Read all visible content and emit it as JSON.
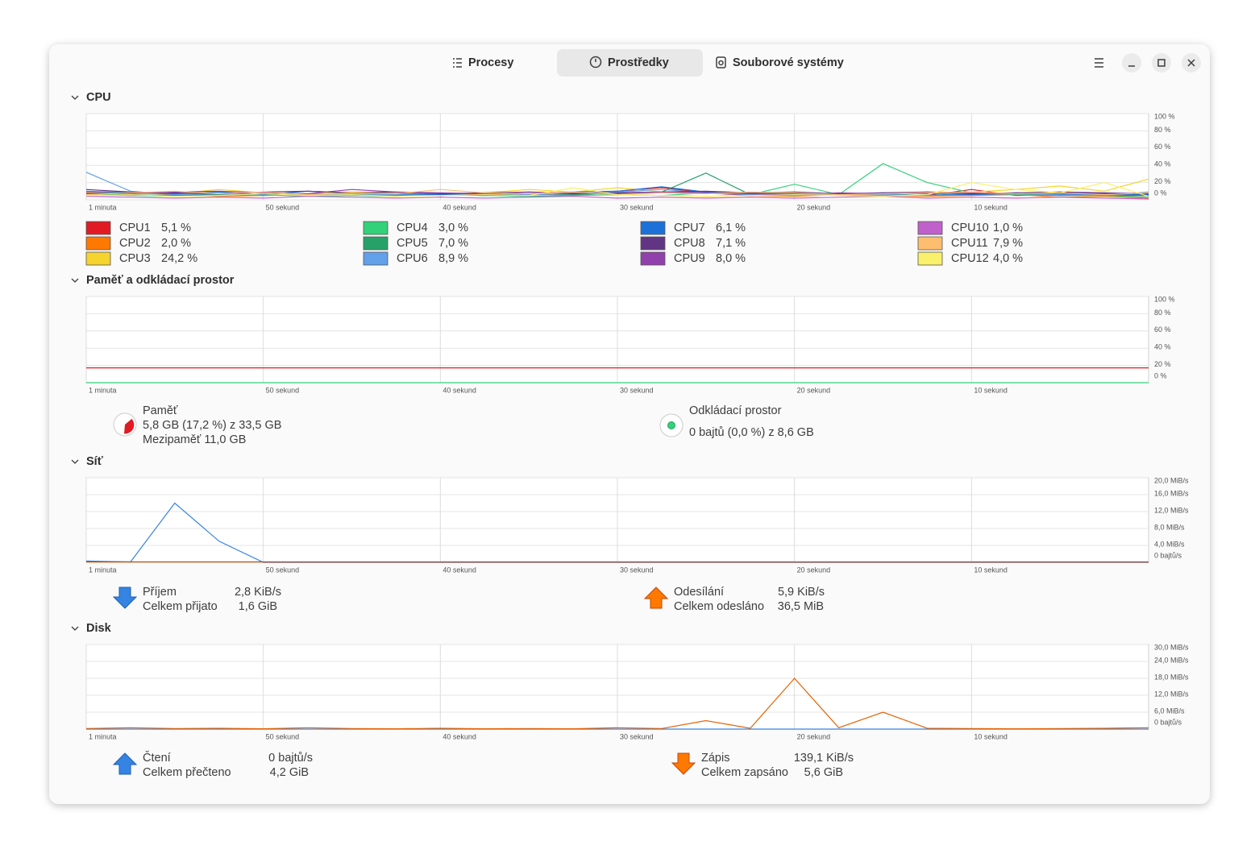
{
  "tabs": [
    {
      "label": "Procesy"
    },
    {
      "label": "Prostředky",
      "selected": true
    },
    {
      "label": "Souborové systémy"
    }
  ],
  "sections": [
    {
      "title": "CPU",
      "chart": {
        "type": "line",
        "x": [
          60,
          57.5,
          55,
          52.5,
          50,
          47.5,
          45,
          42.5,
          40,
          37.5,
          35,
          32.5,
          30,
          27.5,
          25,
          22.5,
          20,
          17.5,
          15,
          12.5,
          10,
          7.5,
          5,
          2.5,
          0
        ],
        "xlim": [
          60,
          0
        ],
        "xticks": [
          {
            "value": 60,
            "label": "1 minuta"
          },
          {
            "value": 50,
            "label": "50 sekund"
          },
          {
            "value": 40,
            "label": "40 sekund"
          },
          {
            "value": 30,
            "label": "30 sekund"
          },
          {
            "value": 20,
            "label": "20 sekund"
          },
          {
            "value": 10,
            "label": "10 sekund"
          }
        ],
        "ylim": [
          0,
          100
        ],
        "yticks": [
          {
            "value": 0,
            "label": "0 %"
          },
          {
            "value": 20,
            "label": "20 %"
          },
          {
            "value": 40,
            "label": "40 %"
          },
          {
            "value": 60,
            "label": "60 %"
          },
          {
            "value": 80,
            "label": "80 %"
          },
          {
            "value": 100,
            "label": "100 %"
          }
        ],
        "series": [
          {
            "name": "CPU1",
            "current": "5,1 %",
            "color": "#e01b24",
            "values": [
              8,
              6,
              5,
              7,
              6,
              5,
              6,
              8,
              5,
              7,
              6,
              6,
              10,
              14,
              8,
              5,
              6,
              7,
              6,
              5,
              12,
              5,
              6,
              5,
              5
            ]
          },
          {
            "name": "CPU2",
            "current": "2,0 %",
            "color": "#ff7800",
            "values": [
              7,
              5,
              6,
              4,
              5,
              6,
              5,
              4,
              6,
              5,
              7,
              5,
              6,
              5,
              4,
              5,
              4,
              6,
              5,
              4,
              5,
              6,
              3,
              4,
              2
            ]
          },
          {
            "name": "CPU3",
            "current": "24,2 %",
            "color": "#f6d32d",
            "values": [
              9,
              8,
              7,
              12,
              8,
              7,
              9,
              8,
              6,
              8,
              12,
              9,
              14,
              9,
              8,
              7,
              8,
              6,
              8,
              7,
              9,
              12,
              16,
              10,
              24
            ]
          },
          {
            "name": "CPU4",
            "current": "3,0 %",
            "color": "#33d17a",
            "values": [
              6,
              5,
              4,
              5,
              6,
              4,
              5,
              4,
              6,
              5,
              4,
              5,
              6,
              5,
              8,
              6,
              18,
              6,
              42,
              20,
              8,
              6,
              5,
              5,
              3
            ]
          },
          {
            "name": "CPU5",
            "current": "7,0 %",
            "color": "#26a269",
            "values": [
              7,
              6,
              5,
              6,
              5,
              7,
              6,
              5,
              6,
              5,
              7,
              6,
              8,
              9,
              31,
              6,
              5,
              6,
              7,
              5,
              6,
              7,
              5,
              6,
              7
            ]
          },
          {
            "name": "CPU6",
            "current": "8,9 %",
            "color": "#62a0ea",
            "values": [
              32,
              10,
              6,
              7,
              5,
              6,
              7,
              6,
              5,
              8,
              6,
              7,
              9,
              12,
              8,
              6,
              5,
              7,
              6,
              5,
              6,
              7,
              6,
              5,
              9
            ]
          },
          {
            "name": "CPU7",
            "current": "6,1 %",
            "color": "#1c71d8",
            "values": [
              10,
              8,
              7,
              9,
              6,
              10,
              8,
              7,
              6,
              8,
              7,
              9,
              10,
              15,
              9,
              8,
              7,
              6,
              8,
              7,
              6,
              8,
              7,
              6,
              6
            ]
          },
          {
            "name": "CPU8",
            "current": "7,1 %",
            "color": "#613583",
            "values": [
              12,
              9,
              8,
              7,
              9,
              10,
              8,
              9,
              7,
              8,
              9,
              7,
              8,
              9,
              10,
              8,
              9,
              7,
              8,
              9,
              7,
              8,
              9,
              8,
              7
            ]
          },
          {
            "name": "CPU9",
            "current": "8,0 %",
            "color": "#9141ac",
            "values": [
              8,
              7,
              9,
              10,
              8,
              7,
              12,
              9,
              8,
              7,
              9,
              8,
              7,
              9,
              8,
              7,
              6,
              8,
              7,
              9,
              8,
              7,
              8,
              7,
              8
            ]
          },
          {
            "name": "CPU10",
            "current": "1,0 %",
            "color": "#c061cb",
            "values": [
              4,
              3,
              2,
              3,
              2,
              4,
              3,
              2,
              3,
              2,
              3,
              4,
              2,
              3,
              2,
              3,
              2,
              3,
              4,
              2,
              3,
              2,
              3,
              2,
              1
            ]
          },
          {
            "name": "CPU11",
            "current": "7,9 %",
            "color": "#ffbe6f",
            "values": [
              6,
              8,
              10,
              7,
              9,
              6,
              8,
              7,
              12,
              8,
              7,
              9,
              6,
              8,
              7,
              9,
              8,
              6,
              7,
              8,
              9,
              7,
              8,
              6,
              8
            ]
          },
          {
            "name": "CPU12",
            "current": "4,0 %",
            "color": "#f9f06b",
            "values": [
              5,
              6,
              4,
              5,
              7,
              5,
              6,
              4,
              5,
              6,
              5,
              14,
              6,
              5,
              4,
              5,
              6,
              5,
              4,
              6,
              20,
              12,
              8,
              20,
              4
            ]
          }
        ]
      }
    },
    {
      "title": "Paměť a odkládací prostor",
      "chart": {
        "type": "line",
        "x": [
          60,
          0
        ],
        "xlim": [
          60,
          0
        ],
        "xticks": [
          {
            "value": 60,
            "label": "1 minuta"
          },
          {
            "value": 50,
            "label": "50 sekund"
          },
          {
            "value": 40,
            "label": "40 sekund"
          },
          {
            "value": 30,
            "label": "30 sekund"
          },
          {
            "value": 20,
            "label": "20 sekund"
          },
          {
            "value": 10,
            "label": "10 sekund"
          }
        ],
        "ylim": [
          0,
          100
        ],
        "yticks": [
          {
            "value": 0,
            "label": "0 %"
          },
          {
            "value": 20,
            "label": "20 %"
          },
          {
            "value": 40,
            "label": "40 %"
          },
          {
            "value": 60,
            "label": "60 %"
          },
          {
            "value": 80,
            "label": "80 %"
          },
          {
            "value": 100,
            "label": "100 %"
          }
        ],
        "series": [
          {
            "name": "Paměť",
            "color": "#e01b24",
            "values": [
              17.2,
              17.2
            ]
          },
          {
            "name": "Odkládací prostor",
            "color": "#33d17a",
            "values": [
              0,
              0
            ]
          }
        ]
      },
      "legend": [
        {
          "name": "Paměť",
          "lines": [
            "5,8 GB (17,2 %) z 33,5 GB",
            "Mezipaměť 11,0 GB"
          ]
        },
        {
          "name": "Odkládací prostor",
          "lines": [
            "0 bajtů (0,0 %) z 8,6 GB"
          ]
        }
      ]
    },
    {
      "title": "Síť",
      "chart": {
        "type": "line",
        "x": [
          60,
          57.5,
          55,
          52.5,
          50,
          47.5,
          45,
          42.5,
          40,
          37.5,
          35,
          32.5,
          30,
          27.5,
          25,
          22.5,
          20,
          17.5,
          15,
          12.5,
          10,
          7.5,
          5,
          2.5,
          0
        ],
        "xlim": [
          60,
          0
        ],
        "xticks": [
          {
            "value": 60,
            "label": "1 minuta"
          },
          {
            "value": 50,
            "label": "50 sekund"
          },
          {
            "value": 40,
            "label": "40 sekund"
          },
          {
            "value": 30,
            "label": "30 sekund"
          },
          {
            "value": 20,
            "label": "20 sekund"
          },
          {
            "value": 10,
            "label": "10 sekund"
          }
        ],
        "ylim": [
          0,
          20
        ],
        "yticks": [
          {
            "value": 0,
            "label": "0 bajtů/s"
          },
          {
            "value": 4,
            "label": "4,0 MiB/s"
          },
          {
            "value": 8,
            "label": "8,0 MiB/s"
          },
          {
            "value": 12,
            "label": "12,0 MiB/s"
          },
          {
            "value": 16,
            "label": "16,0 MiB/s"
          },
          {
            "value": 20,
            "label": "20,0 MiB/s"
          }
        ],
        "series": [
          {
            "name": "Příjem",
            "color": "#3584e4",
            "values": [
              0.3,
              0.1,
              14,
              5,
              0,
              0,
              0,
              0,
              0,
              0,
              0,
              0,
              0,
              0,
              0,
              0,
              0,
              0,
              0,
              0,
              0,
              0,
              0,
              0,
              0
            ]
          },
          {
            "name": "Odesílání",
            "color": "#c64600",
            "values": [
              0.1,
              0.1,
              0.1,
              0.1,
              0.1,
              0.1,
              0.1,
              0.1,
              0.1,
              0.1,
              0.1,
              0.1,
              0.1,
              0.1,
              0.1,
              0.1,
              0.1,
              0.1,
              0.1,
              0.1,
              0.1,
              0.1,
              0.1,
              0.1,
              0.1
            ]
          }
        ]
      },
      "legend": [
        {
          "name": "Příjem",
          "rate": "2,8 KiB/s",
          "total_name": "Celkem přijato",
          "total": "1,6 GiB"
        },
        {
          "name": "Odesílání",
          "rate": "5,9 KiB/s",
          "total_name": "Celkem odesláno",
          "total": "36,5 MiB"
        }
      ]
    },
    {
      "title": "Disk",
      "chart": {
        "type": "line",
        "x": [
          60,
          57.5,
          55,
          52.5,
          50,
          47.5,
          45,
          42.5,
          40,
          37.5,
          35,
          32.5,
          30,
          27.5,
          25,
          22.5,
          20,
          17.5,
          15,
          12.5,
          10,
          7.5,
          5,
          2.5,
          0
        ],
        "xlim": [
          60,
          0
        ],
        "xticks": [
          {
            "value": 60,
            "label": "1 minuta"
          },
          {
            "value": 50,
            "label": "50 sekund"
          },
          {
            "value": 40,
            "label": "40 sekund"
          },
          {
            "value": 30,
            "label": "30 sekund"
          },
          {
            "value": 20,
            "label": "20 sekund"
          },
          {
            "value": 10,
            "label": "10 sekund"
          }
        ],
        "ylim": [
          0,
          30
        ],
        "yticks": [
          {
            "value": 0,
            "label": "0 bajtů/s"
          },
          {
            "value": 6,
            "label": "6,0 MiB/s"
          },
          {
            "value": 12,
            "label": "12,0 MiB/s"
          },
          {
            "value": 18,
            "label": "18,0 MiB/s"
          },
          {
            "value": 24,
            "label": "24,0 MiB/s"
          },
          {
            "value": 30,
            "label": "30,0 MiB/s"
          }
        ],
        "series": [
          {
            "name": "Čtení",
            "color": "#3584e4",
            "values": [
              0,
              0,
              0,
              0,
              0,
              0,
              0,
              0,
              0,
              0,
              0,
              0,
              0,
              0,
              0,
              0,
              0,
              0,
              0,
              0,
              0,
              0,
              0,
              0,
              0
            ]
          },
          {
            "name": "Zápis",
            "color": "#e66100",
            "values": [
              0.2,
              0.5,
              0.2,
              0.3,
              0.1,
              0.5,
              0.2,
              0.1,
              0.3,
              0.1,
              0.2,
              0.1,
              0.5,
              0.2,
              3,
              0.3,
              18,
              0.5,
              6,
              0.3,
              0.2,
              0.1,
              0.2,
              0.3,
              0.5
            ]
          }
        ]
      },
      "legend": [
        {
          "name": "Čtení",
          "rate": "0 bajtů/s",
          "total_name": "Celkem přečteno",
          "total": "4,2 GiB"
        },
        {
          "name": "Zápis",
          "rate": "139,1 KiB/s",
          "total_name": "Celkem zapsáno",
          "total": "5,6 GiB"
        }
      ]
    }
  ]
}
